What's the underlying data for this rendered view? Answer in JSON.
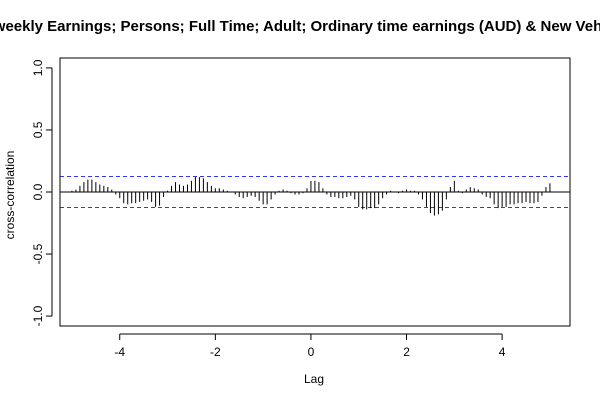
{
  "chart_data": {
    "type": "bar",
    "title": "al weekly Earnings; Persons; Full Time; Adult; Ordinary time earnings (AUD) & New Vehicl",
    "xlabel": "Lag",
    "ylabel": "cross-correlation",
    "xlim": [
      -5.25,
      5.42
    ],
    "ylim": [
      -1.0,
      1.0
    ],
    "xticks": [
      -4,
      -2,
      0,
      2,
      4
    ],
    "xtick_labels": [
      "-4",
      "-2",
      "0",
      "2",
      "4"
    ],
    "yticks": [
      -1.0,
      -0.5,
      0.0,
      0.5,
      1.0
    ],
    "ytick_labels": [
      "-1.0",
      "-0.5",
      "0.0",
      "0.5",
      "1.0"
    ],
    "confidence_bound": 0.125,
    "zero_line": true,
    "grid": false,
    "colors": {
      "bars": "#000000",
      "confidence_lines": "#3333ff",
      "axes": "#000000"
    },
    "x": [
      -5.0,
      -4.917,
      -4.833,
      -4.75,
      -4.667,
      -4.583,
      -4.5,
      -4.417,
      -4.333,
      -4.25,
      -4.167,
      -4.083,
      -4.0,
      -3.917,
      -3.833,
      -3.75,
      -3.667,
      -3.583,
      -3.5,
      -3.417,
      -3.333,
      -3.25,
      -3.167,
      -3.083,
      -3.0,
      -2.917,
      -2.833,
      -2.75,
      -2.667,
      -2.583,
      -2.5,
      -2.417,
      -2.333,
      -2.25,
      -2.167,
      -2.083,
      -2.0,
      -1.917,
      -1.833,
      -1.75,
      -1.667,
      -1.583,
      -1.5,
      -1.417,
      -1.333,
      -1.25,
      -1.167,
      -1.083,
      -1.0,
      -0.917,
      -0.833,
      -0.75,
      -0.667,
      -0.583,
      -0.5,
      -0.417,
      -0.333,
      -0.25,
      -0.167,
      -0.083,
      0.0,
      0.083,
      0.167,
      0.25,
      0.333,
      0.417,
      0.5,
      0.583,
      0.667,
      0.75,
      0.833,
      0.917,
      1.0,
      1.083,
      1.167,
      1.25,
      1.333,
      1.417,
      1.5,
      1.583,
      1.667,
      1.75,
      1.833,
      1.917,
      2.0,
      2.083,
      2.167,
      2.25,
      2.333,
      2.417,
      2.5,
      2.583,
      2.667,
      2.75,
      2.833,
      2.917,
      3.0,
      3.083,
      3.167,
      3.25,
      3.333,
      3.417,
      3.5,
      3.583,
      3.667,
      3.75,
      3.833,
      3.917,
      4.0,
      4.083,
      4.167,
      4.25,
      4.333,
      4.417,
      4.5,
      4.583,
      4.667,
      4.75,
      4.833,
      4.917,
      5.0
    ],
    "values": [
      0.01,
      0.02,
      0.05,
      0.08,
      0.1,
      0.1,
      0.08,
      0.06,
      0.05,
      0.04,
      0.02,
      -0.02,
      -0.05,
      -0.09,
      -0.1,
      -0.09,
      -0.09,
      -0.08,
      -0.07,
      -0.06,
      -0.08,
      -0.12,
      -0.11,
      -0.04,
      0.01,
      0.05,
      0.08,
      0.06,
      0.05,
      0.06,
      0.09,
      0.12,
      0.12,
      0.11,
      0.08,
      0.05,
      0.03,
      0.03,
      0.02,
      0.01,
      0.0,
      -0.02,
      -0.04,
      -0.05,
      -0.04,
      -0.03,
      -0.04,
      -0.07,
      -0.1,
      -0.1,
      -0.06,
      -0.02,
      0.01,
      0.02,
      0.01,
      -0.01,
      -0.02,
      -0.02,
      -0.01,
      0.03,
      0.09,
      0.09,
      0.08,
      0.03,
      -0.02,
      -0.04,
      -0.04,
      -0.05,
      -0.05,
      -0.04,
      -0.03,
      -0.06,
      -0.12,
      -0.14,
      -0.14,
      -0.13,
      -0.13,
      -0.1,
      -0.05,
      -0.02,
      0.01,
      0.0,
      -0.01,
      0.01,
      0.02,
      0.01,
      0.01,
      -0.02,
      -0.06,
      -0.12,
      -0.17,
      -0.19,
      -0.18,
      -0.15,
      -0.06,
      0.04,
      0.09,
      0.01,
      -0.01,
      0.02,
      0.04,
      0.03,
      0.02,
      -0.02,
      -0.04,
      -0.05,
      -0.1,
      -0.13,
      -0.12,
      -0.12,
      -0.1,
      -0.1,
      -0.09,
      -0.09,
      -0.08,
      -0.09,
      -0.09,
      -0.08,
      -0.03,
      0.04,
      0.07
    ]
  }
}
